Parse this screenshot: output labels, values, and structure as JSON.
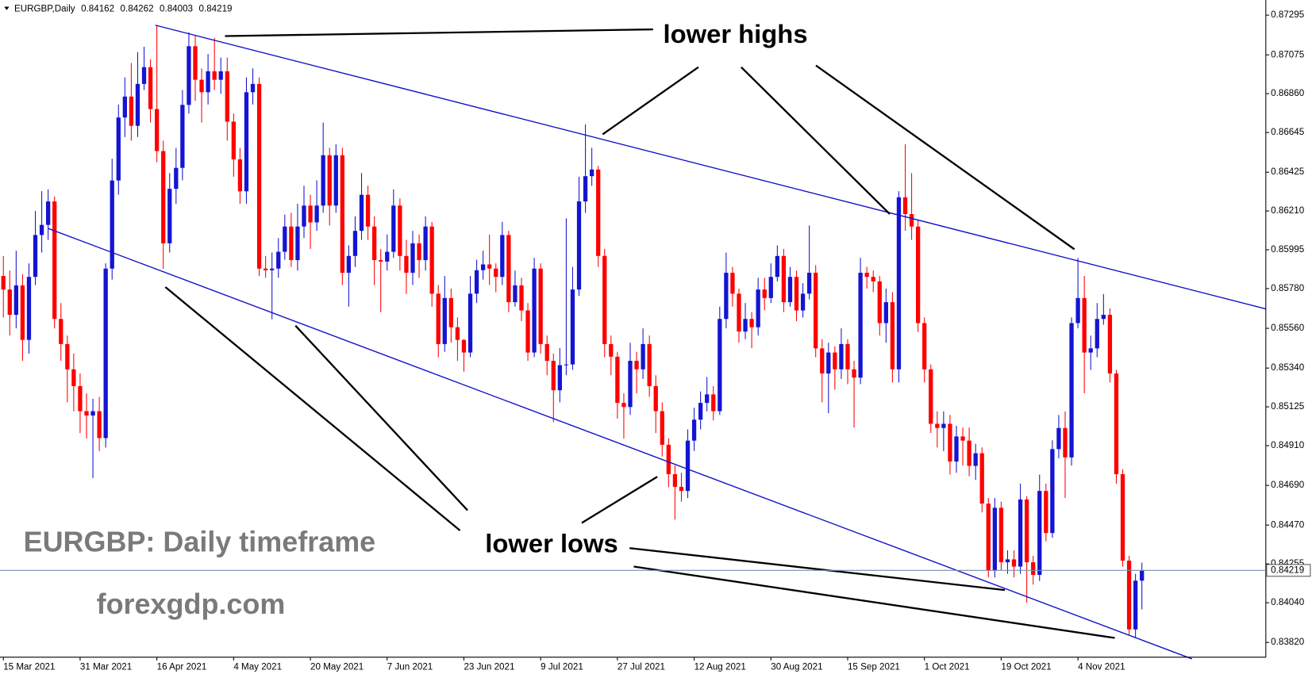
{
  "chart_data": {
    "type": "candlestick",
    "title": "EURGBP,Daily",
    "categories": [
      "15 Mar 2021",
      null,
      null,
      null,
      null,
      null,
      null,
      null,
      null,
      null,
      null,
      null,
      "31 Mar 2021",
      null,
      null,
      null,
      null,
      null,
      null,
      null,
      null,
      null,
      null,
      null,
      "16 Apr 2021",
      null,
      null,
      null,
      null,
      null,
      null,
      null,
      null,
      null,
      null,
      null,
      "4 May 2021",
      null,
      null,
      null,
      null,
      null,
      null,
      null,
      null,
      null,
      null,
      null,
      "20 May 2021",
      null,
      null,
      null,
      null,
      null,
      null,
      null,
      null,
      null,
      null,
      null,
      "7 Jun 2021",
      null,
      null,
      null,
      null,
      null,
      null,
      null,
      null,
      null,
      null,
      null,
      "23 Jun 2021",
      null,
      null,
      null,
      null,
      null,
      null,
      null,
      null,
      null,
      null,
      null,
      "9 Jul 2021",
      null,
      null,
      null,
      null,
      null,
      null,
      null,
      null,
      null,
      null,
      null,
      "27 Jul 2021",
      null,
      null,
      null,
      null,
      null,
      null,
      null,
      null,
      null,
      null,
      null,
      "12 Aug 2021",
      null,
      null,
      null,
      null,
      null,
      null,
      null,
      null,
      null,
      null,
      null,
      "30 Aug 2021",
      null,
      null,
      null,
      null,
      null,
      null,
      null,
      null,
      null,
      null,
      null,
      "15 Sep 2021",
      null,
      null,
      null,
      null,
      null,
      null,
      null,
      null,
      null,
      null,
      null,
      "1 Oct 2021",
      null,
      null,
      null,
      null,
      null,
      null,
      null,
      null,
      null,
      null,
      null,
      "19 Oct 2021",
      null,
      null,
      null,
      null,
      null,
      null,
      null,
      null,
      null,
      null,
      null,
      "4 Nov 2021",
      null,
      null,
      null,
      null,
      null,
      null,
      null,
      null,
      null,
      null
    ],
    "open": [
      0.8585,
      0.85775,
      0.85635,
      0.85798,
      0.85496,
      0.85845,
      0.86077,
      0.86133,
      0.86263,
      0.85612,
      0.85473,
      0.85333,
      0.8524,
      0.85101,
      0.85077,
      0.85101,
      0.84952,
      0.85891,
      0.86379,
      0.86728,
      0.86844,
      0.86682,
      0.86914,
      0.87007,
      0.86775,
      0.86542,
      0.86031,
      0.86333,
      0.86449,
      0.86798,
      0.87123,
      0.86937,
      0.86868,
      0.86984,
      0.86937,
      0.86984,
      0.86705,
      0.86496,
      0.86319,
      0.86868,
      0.86914,
      0.85891,
      0.85882,
      0.85891,
      0.85984,
      0.86124,
      0.85938,
      0.86124,
      0.8624,
      0.86147,
      0.8624,
      0.86519,
      0.8624,
      0.86519,
      0.85868,
      0.85961,
      0.861,
      0.863,
      0.86124,
      0.85938,
      0.8593,
      0.85984,
      0.8624,
      0.85961,
      0.85868,
      0.86031,
      0.85938,
      0.86124,
      0.85752,
      0.85473,
      0.85728,
      0.85566,
      0.85496,
      0.85426,
      0.85752,
      0.85882,
      0.85914,
      0.85891,
      0.85845,
      0.86077,
      0.85705,
      0.85798,
      0.85659,
      0.85426,
      0.85891,
      0.85473,
      0.8538,
      0.85217,
      0.85356,
      0.8536,
      0.85775,
      0.86263,
      0.86403,
      0.8644,
      0.85961,
      0.85473,
      0.85403,
      0.85147,
      0.85124,
      0.8538,
      0.85333,
      0.85473,
      0.8524,
      0.85101,
      0.84915,
      0.84752,
      0.84682,
      0.84659,
      0.84938,
      0.85054,
      0.85147,
      0.85194,
      0.85101,
      0.85612,
      0.85868,
      0.85752,
      0.85542,
      0.85612,
      0.85566,
      0.85775,
      0.85728,
      0.85845,
      0.85961,
      0.85705,
      0.85845,
      0.85659,
      0.85752,
      0.85868,
      0.85449,
      0.8531,
      0.85426,
      0.85333,
      0.85473,
      0.85333,
      0.85287,
      0.85868,
      0.85845,
      0.8582,
      0.85589,
      0.85705,
      0.85333,
      0.86286,
      0.86193,
      0.86124,
      0.85589,
      0.85333,
      0.85031,
      0.85008,
      0.85031,
      0.84822,
      0.84961,
      0.84938,
      0.84798,
      0.84868,
      0.84589,
      0.84217,
      0.84566,
      0.84264,
      0.8428,
      0.8424,
      0.84612,
      0.84264,
      0.84194,
      0.84659,
      0.84426,
      0.84891,
      0.85008,
      0.84845,
      0.85589,
      0.85728,
      0.85426,
      0.85449,
      0.85612,
      0.85635,
      0.8531,
      0.84752,
      0.84273,
      0.83892,
      0.84162
    ],
    "high": [
      0.8596,
      0.8588,
      0.8599,
      0.8586,
      0.8592,
      0.8621,
      0.8632,
      0.8633,
      0.8629,
      0.857,
      0.8552,
      0.8542,
      0.8531,
      0.852,
      0.8517,
      0.8518,
      0.8592,
      0.865,
      0.868,
      0.8695,
      0.8703,
      0.8709,
      0.8712,
      0.8705,
      0.8724,
      0.866,
      0.8642,
      0.8656,
      0.8688,
      0.872,
      0.8718,
      0.87,
      0.8708,
      0.8717,
      0.8706,
      0.8706,
      0.8675,
      0.8656,
      0.8695,
      0.87,
      0.8695,
      0.8596,
      0.8598,
      0.8606,
      0.8619,
      0.862,
      0.8625,
      0.8635,
      0.863,
      0.8638,
      0.867,
      0.8656,
      0.8658,
      0.8656,
      0.8602,
      0.8618,
      0.8642,
      0.8635,
      0.8618,
      0.86,
      0.8608,
      0.8633,
      0.8628,
      0.8605,
      0.861,
      0.8608,
      0.8618,
      0.8615,
      0.858,
      0.8585,
      0.8578,
      0.8562,
      0.855,
      0.8585,
      0.8594,
      0.8599,
      0.8608,
      0.8592,
      0.8615,
      0.861,
      0.8588,
      0.8584,
      0.857,
      0.8595,
      0.8592,
      0.8552,
      0.8542,
      0.8545,
      0.8617,
      0.859,
      0.864,
      0.8669,
      0.8656,
      0.8646,
      0.86,
      0.8552,
      0.8543,
      0.852,
      0.8548,
      0.8543,
      0.8556,
      0.8552,
      0.853,
      0.8515,
      0.8495,
      0.848,
      0.8476,
      0.85,
      0.8512,
      0.8521,
      0.8529,
      0.8524,
      0.8568,
      0.8598,
      0.859,
      0.8578,
      0.857,
      0.8565,
      0.8584,
      0.8584,
      0.8592,
      0.8602,
      0.86,
      0.859,
      0.8588,
      0.8581,
      0.8613,
      0.8591,
      0.855,
      0.8548,
      0.8546,
      0.8556,
      0.855,
      0.8538,
      0.8595,
      0.859,
      0.8588,
      0.8585,
      0.8578,
      0.8576,
      0.8632,
      0.8658,
      0.8642,
      0.8616,
      0.8562,
      0.8536,
      0.851,
      0.851,
      0.8508,
      0.8502,
      0.8501,
      0.8501,
      0.8492,
      0.849,
      0.8462,
      0.8462,
      0.846,
      0.8433,
      0.8433,
      0.847,
      0.8463,
      0.843,
      0.8475,
      0.847,
      0.8494,
      0.8508,
      0.851,
      0.8562,
      0.8595,
      0.8585,
      0.8552,
      0.857,
      0.8575,
      0.8567,
      0.8533,
      0.8478,
      0.843,
      0.842,
      0.84262
    ],
    "low": [
      0.8562,
      0.8552,
      0.8556,
      0.8538,
      0.8542,
      0.858,
      0.8598,
      0.8605,
      0.8556,
      0.8538,
      0.8515,
      0.851,
      0.8498,
      0.8495,
      0.8473,
      0.8488,
      0.849,
      0.8583,
      0.863,
      0.8662,
      0.866,
      0.8662,
      0.8688,
      0.867,
      0.8648,
      0.8589,
      0.8598,
      0.8625,
      0.8638,
      0.8675,
      0.8682,
      0.867,
      0.868,
      0.8688,
      0.8686,
      0.866,
      0.864,
      0.8625,
      0.8625,
      0.868,
      0.8585,
      0.8584,
      0.8561,
      0.8584,
      0.8594,
      0.859,
      0.8588,
      0.8606,
      0.86,
      0.861,
      0.862,
      0.8613,
      0.862,
      0.858,
      0.8568,
      0.859,
      0.8605,
      0.8605,
      0.858,
      0.8565,
      0.8588,
      0.8595,
      0.8588,
      0.8575,
      0.858,
      0.8584,
      0.8588,
      0.8568,
      0.854,
      0.8543,
      0.8548,
      0.8538,
      0.8532,
      0.854,
      0.857,
      0.8583,
      0.858,
      0.8576,
      0.858,
      0.8565,
      0.8568,
      0.856,
      0.8538,
      0.854,
      0.8542,
      0.853,
      0.8504,
      0.8515,
      0.853,
      0.8533,
      0.8574,
      0.862,
      0.8635,
      0.859,
      0.854,
      0.853,
      0.8506,
      0.8495,
      0.8508,
      0.852,
      0.8528,
      0.8518,
      0.8498,
      0.8485,
      0.8468,
      0.845,
      0.846,
      0.8462,
      0.8488,
      0.85,
      0.851,
      0.8505,
      0.8508,
      0.8556,
      0.8568,
      0.8548,
      0.855,
      0.8545,
      0.8552,
      0.8566,
      0.857,
      0.8582,
      0.8565,
      0.8568,
      0.856,
      0.8562,
      0.8572,
      0.854,
      0.8515,
      0.8509,
      0.8522,
      0.8528,
      0.8525,
      0.8501,
      0.8525,
      0.8578,
      0.8576,
      0.8552,
      0.8548,
      0.8526,
      0.8526,
      0.861,
      0.8605,
      0.8554,
      0.8526,
      0.8498,
      0.849,
      0.8488,
      0.8475,
      0.8476,
      0.848,
      0.8474,
      0.8472,
      0.8454,
      0.8418,
      0.8418,
      0.8422,
      0.842,
      0.8418,
      0.842,
      0.8404,
      0.8414,
      0.8416,
      0.8438,
      0.844,
      0.8484,
      0.8462,
      0.848,
      0.8556,
      0.852,
      0.8533,
      0.854,
      0.8558,
      0.8526,
      0.847,
      0.8424,
      0.8386,
      0.8385,
      0.84003
    ],
    "close": [
      0.85775,
      0.85635,
      0.85798,
      0.85496,
      0.85845,
      0.86077,
      0.86133,
      0.86263,
      0.85612,
      0.85473,
      0.85333,
      0.8524,
      0.85101,
      0.85077,
      0.85101,
      0.84952,
      0.85891,
      0.86379,
      0.86728,
      0.86844,
      0.86682,
      0.86914,
      0.87007,
      0.86775,
      0.86542,
      0.86031,
      0.86333,
      0.86449,
      0.86798,
      0.87123,
      0.86937,
      0.86868,
      0.86984,
      0.86937,
      0.86984,
      0.86705,
      0.86496,
      0.86319,
      0.86868,
      0.86914,
      0.85891,
      0.85882,
      0.85891,
      0.85984,
      0.86124,
      0.85938,
      0.86124,
      0.8624,
      0.86147,
      0.8624,
      0.86519,
      0.8624,
      0.86519,
      0.85868,
      0.85961,
      0.861,
      0.863,
      0.86124,
      0.85938,
      0.8593,
      0.85984,
      0.8624,
      0.85961,
      0.85868,
      0.86031,
      0.85938,
      0.86124,
      0.85752,
      0.85473,
      0.85728,
      0.85566,
      0.85496,
      0.85426,
      0.85752,
      0.85882,
      0.85914,
      0.85891,
      0.85845,
      0.86077,
      0.85705,
      0.85798,
      0.85659,
      0.85426,
      0.85891,
      0.85473,
      0.8538,
      0.85217,
      0.85356,
      0.8536,
      0.85775,
      0.86263,
      0.86403,
      0.8644,
      0.85961,
      0.85473,
      0.85403,
      0.85147,
      0.85124,
      0.8538,
      0.85333,
      0.85473,
      0.8524,
      0.85101,
      0.84915,
      0.84752,
      0.84682,
      0.84659,
      0.84938,
      0.85054,
      0.85147,
      0.85194,
      0.85101,
      0.85612,
      0.85868,
      0.85752,
      0.85542,
      0.85612,
      0.85566,
      0.85775,
      0.85728,
      0.85845,
      0.85961,
      0.85705,
      0.85845,
      0.85659,
      0.85752,
      0.85868,
      0.85449,
      0.8531,
      0.85426,
      0.85333,
      0.85473,
      0.85333,
      0.85287,
      0.85868,
      0.85845,
      0.8582,
      0.85589,
      0.85705,
      0.85333,
      0.86286,
      0.86193,
      0.86124,
      0.85589,
      0.85333,
      0.85031,
      0.85008,
      0.85031,
      0.84822,
      0.84961,
      0.84938,
      0.84798,
      0.84868,
      0.84589,
      0.84217,
      0.84566,
      0.84264,
      0.8428,
      0.8424,
      0.84612,
      0.84264,
      0.84194,
      0.84659,
      0.84426,
      0.84891,
      0.85008,
      0.84845,
      0.85589,
      0.85728,
      0.85426,
      0.85449,
      0.85612,
      0.85635,
      0.8531,
      0.84752,
      0.84273,
      0.83892,
      0.84162,
      0.84219
    ],
    "up_color": "#1414d2",
    "down_color": "#ff0000",
    "price_line_color": "#7a8db0",
    "ylim": [
      0.83738,
      0.87379
    ],
    "yticks": [
      0.87295,
      0.87075,
      {
        "value": 0.8686,
        "label": "0.86860"
      },
      0.86645,
      0.86425,
      {
        "value": 0.8621,
        "label": "0.86210"
      },
      0.85995,
      {
        "value": 0.8578,
        "label": "0.85780"
      },
      {
        "value": 0.8556,
        "label": "0.85560"
      },
      {
        "value": 0.8534,
        "label": "0.85340"
      },
      0.85125,
      {
        "value": 0.8491,
        "label": "0.84910"
      },
      {
        "value": 0.8469,
        "label": "0.84690"
      },
      {
        "value": 0.8447,
        "label": "0.84470"
      },
      0.84255,
      {
        "value": 0.8404,
        "label": "0.84040"
      },
      {
        "value": 0.8382,
        "label": "0.83820"
      }
    ],
    "grid": false,
    "annotations": [
      "lower highs",
      "lower lows",
      "EURGBP: Daily timeframe",
      "forexgdp.com"
    ]
  }
}
